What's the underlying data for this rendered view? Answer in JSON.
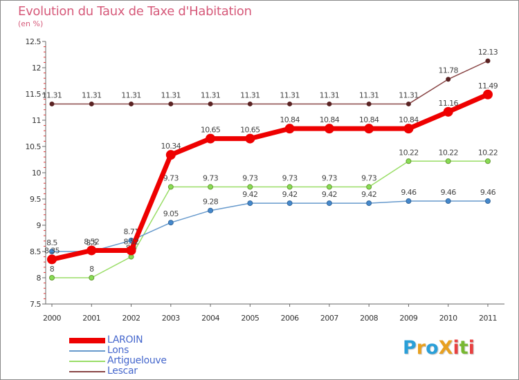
{
  "title": "Evolution du Taux de Taxe d'Habitation",
  "unit_label": "(en %)",
  "logo": {
    "text": "ProXiti",
    "letters": [
      "P",
      "r",
      "o",
      "X",
      "i",
      "t",
      "i"
    ],
    "colors": [
      "#2a9fd8",
      "#e8a020",
      "#2a9fd8",
      "#e8a020",
      "#e84040",
      "#78b832",
      "#e84040"
    ]
  },
  "colors": {
    "laroin": "#ee0000",
    "lons": "#6699cc",
    "artiguelouve": "#99dd66",
    "lescar": "#884444",
    "axis": "#666666",
    "title": "#d65a7a",
    "legend_text": "#4466cc"
  },
  "chart_data": {
    "type": "line",
    "title": "Evolution du Taux de Taxe d'Habitation",
    "ylabel": "(en %)",
    "xlabel": "",
    "ylim": [
      7.5,
      12.5
    ],
    "yticks": [
      "7.5",
      "8",
      "8.5",
      "9",
      "9.5",
      "10",
      "10.5",
      "11",
      "11.5",
      "12",
      "12.5"
    ],
    "x": [
      "2000",
      "2001",
      "2002",
      "2003",
      "2004",
      "2005",
      "2006",
      "2007",
      "2008",
      "2009",
      "2010",
      "2011"
    ],
    "series": [
      {
        "name": "Lescar",
        "key": "lescar",
        "values": [
          11.31,
          11.31,
          11.31,
          11.31,
          11.31,
          11.31,
          11.31,
          11.31,
          11.31,
          11.31,
          11.78,
          12.13
        ],
        "labels": [
          "11.31",
          "11.31",
          "11.31",
          "11.31",
          "11.31",
          "11.31",
          "11.31",
          "11.31",
          "11.31",
          "11.31",
          "11.78",
          "12.13"
        ]
      },
      {
        "name": "Artiguelouve",
        "key": "artiguelouve",
        "values": [
          8,
          8,
          8.4,
          9.73,
          9.73,
          9.73,
          9.73,
          9.73,
          9.73,
          10.22,
          10.22,
          10.22
        ],
        "labels": [
          "8",
          "8",
          "8.4",
          "9.73",
          "9.73",
          "9.73",
          "9.73",
          "9.73",
          "9.73",
          "10.22",
          "10.22",
          "10.22"
        ]
      },
      {
        "name": "Lons",
        "key": "lons",
        "values": [
          8.5,
          8.5,
          8.71,
          9.05,
          9.28,
          9.42,
          9.42,
          9.42,
          9.42,
          9.46,
          9.46,
          9.46
        ],
        "labels": [
          "8.5",
          "8.5",
          "8.71",
          "9.05",
          "9.28",
          "9.42",
          "9.42",
          "9.42",
          "9.42",
          "9.46",
          "9.46",
          "9.46"
        ]
      },
      {
        "name": "LAROIN",
        "key": "laroin",
        "values": [
          8.35,
          8.52,
          8.52,
          10.34,
          10.65,
          10.65,
          10.84,
          10.84,
          10.84,
          10.84,
          11.16,
          11.49
        ],
        "labels": [
          "8.35",
          "8.52",
          "8.52",
          "10.34",
          "10.65",
          "10.65",
          "10.84",
          "10.84",
          "10.84",
          "10.84",
          "11.16",
          "11.49"
        ]
      }
    ],
    "legend": [
      "LAROIN",
      "Lons",
      "Artiguelouve",
      "Lescar"
    ],
    "legend_position": "bottom-left"
  }
}
